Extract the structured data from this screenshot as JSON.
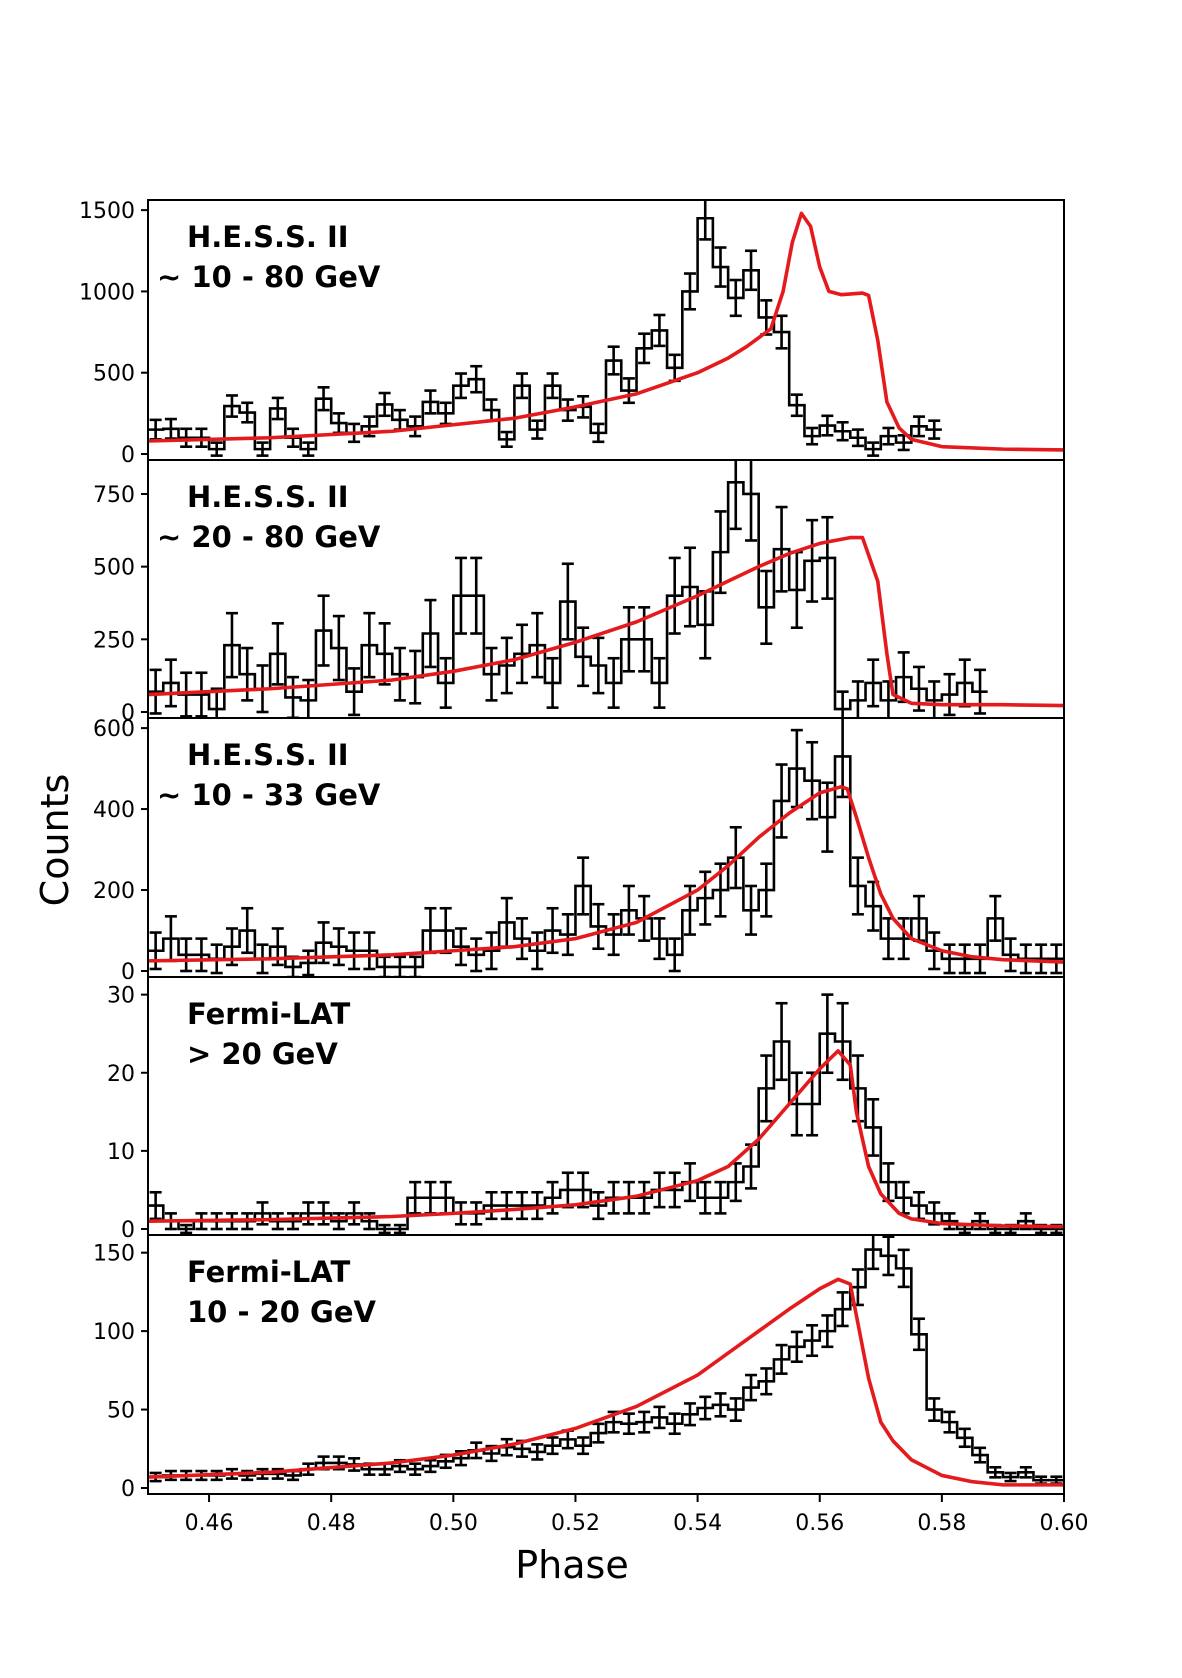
{
  "chart_data": {
    "type": "histogram",
    "xlabel": "Phase",
    "ylabel": "Counts",
    "xlim": [
      0.45,
      0.6
    ],
    "bin_width": 0.0025,
    "x_ticks": [
      "0.46",
      "0.48",
      "0.50",
      "0.52",
      "0.54",
      "0.56",
      "0.58",
      "0.60"
    ],
    "panels": [
      {
        "name": "hess-10-80",
        "annotation": [
          "H.E.S.S. II",
          "∼ 10 - 80 GeV"
        ],
        "ylim": [
          0,
          1550
        ],
        "yticks": [
          0,
          500,
          1000,
          1500
        ],
        "counts": [
          150,
          155,
          100,
          100,
          30,
          295,
          255,
          30,
          280,
          100,
          30,
          340,
          190,
          130,
          170,
          305,
          210,
          170,
          320,
          250,
          420,
          460,
          270,
          90,
          420,
          150,
          420,
          270,
          290,
          130,
          575,
          390,
          650,
          760,
          530,
          1000,
          1450,
          1150,
          960,
          1130,
          840,
          750,
          300,
          110,
          175,
          140,
          100,
          30,
          110,
          70,
          170,
          150
        ],
        "errors": [
          60,
          60,
          55,
          55,
          40,
          65,
          60,
          40,
          65,
          55,
          40,
          70,
          60,
          55,
          60,
          70,
          60,
          60,
          70,
          65,
          75,
          80,
          65,
          45,
          75,
          55,
          75,
          65,
          65,
          55,
          85,
          75,
          90,
          95,
          80,
          110,
          130,
          120,
          110,
          120,
          105,
          100,
          65,
          50,
          60,
          55,
          50,
          40,
          50,
          45,
          60,
          55
        ],
        "model": [
          [
            0.45,
            80
          ],
          [
            0.47,
            100
          ],
          [
            0.49,
            140
          ],
          [
            0.51,
            220
          ],
          [
            0.52,
            290
          ],
          [
            0.53,
            370
          ],
          [
            0.54,
            500
          ],
          [
            0.545,
            590
          ],
          [
            0.548,
            660
          ],
          [
            0.552,
            770
          ],
          [
            0.554,
            1000
          ],
          [
            0.5555,
            1300
          ],
          [
            0.557,
            1480
          ],
          [
            0.5585,
            1400
          ],
          [
            0.56,
            1150
          ],
          [
            0.5615,
            1000
          ],
          [
            0.5635,
            980
          ],
          [
            0.567,
            990
          ],
          [
            0.568,
            975
          ],
          [
            0.5695,
            700
          ],
          [
            0.571,
            320
          ],
          [
            0.573,
            160
          ],
          [
            0.575,
            90
          ],
          [
            0.58,
            45
          ],
          [
            0.59,
            30
          ],
          [
            0.6,
            25
          ]
        ]
      },
      {
        "name": "hess-20-80",
        "annotation": [
          "H.E.S.S. II",
          "∼ 20 - 80 GeV"
        ],
        "ylim": [
          0,
          860
        ],
        "yticks": [
          0,
          250,
          500,
          750
        ],
        "counts": [
          70,
          100,
          60,
          60,
          10,
          230,
          130,
          80,
          200,
          50,
          40,
          280,
          220,
          70,
          230,
          200,
          130,
          120,
          270,
          100,
          400,
          400,
          130,
          160,
          200,
          230,
          100,
          380,
          190,
          160,
          100,
          250,
          250,
          100,
          400,
          430,
          300,
          550,
          790,
          750,
          360,
          560,
          420,
          520,
          530,
          10,
          40,
          100,
          40,
          120,
          80,
          40,
          60,
          100,
          70
        ],
        "errors": [
          75,
          80,
          75,
          75,
          70,
          110,
          90,
          80,
          105,
          70,
          70,
          120,
          110,
          80,
          110,
          105,
          90,
          90,
          115,
          85,
          130,
          130,
          90,
          95,
          100,
          110,
          85,
          130,
          100,
          95,
          85,
          110,
          110,
          85,
          130,
          135,
          115,
          140,
          160,
          160,
          125,
          145,
          130,
          140,
          140,
          60,
          65,
          80,
          65,
          85,
          75,
          65,
          70,
          80,
          75
        ],
        "model": [
          [
            0.45,
            60
          ],
          [
            0.47,
            80
          ],
          [
            0.49,
            110
          ],
          [
            0.5,
            140
          ],
          [
            0.51,
            180
          ],
          [
            0.52,
            240
          ],
          [
            0.53,
            310
          ],
          [
            0.54,
            400
          ],
          [
            0.545,
            450
          ],
          [
            0.55,
            500
          ],
          [
            0.555,
            545
          ],
          [
            0.56,
            580
          ],
          [
            0.565,
            600
          ],
          [
            0.567,
            600
          ],
          [
            0.5695,
            450
          ],
          [
            0.571,
            200
          ],
          [
            0.572,
            60
          ],
          [
            0.575,
            30
          ],
          [
            0.58,
            25
          ],
          [
            0.59,
            25
          ],
          [
            0.6,
            22
          ]
        ]
      },
      {
        "name": "hess-10-33",
        "annotation": [
          "H.E.S.S. II",
          "∼ 10 - 33 GeV"
        ],
        "ylim": [
          0,
          620
        ],
        "yticks": [
          0,
          200,
          400,
          600
        ],
        "counts": [
          50,
          80,
          40,
          40,
          30,
          60,
          100,
          30,
          60,
          10,
          20,
          70,
          60,
          50,
          50,
          10,
          10,
          10,
          100,
          100,
          60,
          40,
          50,
          120,
          80,
          50,
          100,
          90,
          210,
          110,
          90,
          150,
          130,
          80,
          40,
          150,
          180,
          200,
          280,
          150,
          200,
          420,
          500,
          470,
          380,
          530,
          210,
          160,
          80,
          80,
          130,
          50,
          30,
          30,
          30,
          130,
          40,
          30,
          30,
          30
        ],
        "errors": [
          45,
          55,
          40,
          40,
          35,
          45,
          55,
          35,
          45,
          25,
          30,
          50,
          45,
          45,
          45,
          25,
          25,
          25,
          55,
          55,
          45,
          40,
          45,
          60,
          50,
          45,
          55,
          50,
          70,
          55,
          50,
          60,
          55,
          50,
          40,
          60,
          65,
          65,
          75,
          60,
          65,
          90,
          95,
          95,
          85,
          100,
          70,
          60,
          50,
          50,
          55,
          45,
          35,
          35,
          35,
          55,
          40,
          35,
          35,
          35
        ],
        "model": [
          [
            0.45,
            25
          ],
          [
            0.47,
            30
          ],
          [
            0.49,
            40
          ],
          [
            0.5,
            50
          ],
          [
            0.51,
            60
          ],
          [
            0.52,
            80
          ],
          [
            0.53,
            120
          ],
          [
            0.54,
            200
          ],
          [
            0.545,
            260
          ],
          [
            0.55,
            330
          ],
          [
            0.555,
            390
          ],
          [
            0.56,
            440
          ],
          [
            0.5635,
            455
          ],
          [
            0.5645,
            450
          ],
          [
            0.566,
            380
          ],
          [
            0.568,
            280
          ],
          [
            0.57,
            190
          ],
          [
            0.572,
            130
          ],
          [
            0.575,
            80
          ],
          [
            0.58,
            50
          ],
          [
            0.585,
            35
          ],
          [
            0.59,
            28
          ],
          [
            0.6,
            22
          ]
        ]
      },
      {
        "name": "fermi-gt20",
        "annotation": [
          "Fermi-LAT",
          "> 20 GeV"
        ],
        "ylim": [
          0,
          32
        ],
        "yticks": [
          0,
          10,
          20,
          30
        ],
        "counts": [
          3,
          1,
          0,
          1,
          1,
          1,
          1,
          2,
          1,
          1,
          2,
          2,
          1,
          2,
          1,
          0,
          0,
          4,
          4,
          4,
          2,
          2,
          3,
          3,
          3,
          3,
          4,
          5,
          5,
          3,
          4,
          4,
          4,
          5,
          5,
          6,
          4,
          4,
          6,
          8,
          18,
          24,
          16,
          16,
          25,
          24,
          18,
          13,
          6,
          4,
          3,
          2,
          1,
          0,
          1,
          0,
          0,
          1,
          0,
          0
        ],
        "errors": [
          1.7,
          1.0,
          0.5,
          1.0,
          1.0,
          1.0,
          1.0,
          1.4,
          1.0,
          1.0,
          1.4,
          1.4,
          1.0,
          1.4,
          1.0,
          0.5,
          0.5,
          2.0,
          2.0,
          2.0,
          1.4,
          1.4,
          1.7,
          1.7,
          1.7,
          1.7,
          2.0,
          2.2,
          2.2,
          1.7,
          2.0,
          2.0,
          2.0,
          2.2,
          2.2,
          2.4,
          2.0,
          2.0,
          2.4,
          2.8,
          4.2,
          4.9,
          4.0,
          4.0,
          5.0,
          4.9,
          4.2,
          3.6,
          2.4,
          2.0,
          1.7,
          1.4,
          1.0,
          0.5,
          1.0,
          0.5,
          0.5,
          1.0,
          0.5,
          0.5
        ],
        "model": [
          [
            0.45,
            1.0
          ],
          [
            0.47,
            1.2
          ],
          [
            0.49,
            1.6
          ],
          [
            0.5,
            2.0
          ],
          [
            0.51,
            2.5
          ],
          [
            0.52,
            3.1
          ],
          [
            0.53,
            4.2
          ],
          [
            0.54,
            6.2
          ],
          [
            0.545,
            8.0
          ],
          [
            0.55,
            11.5
          ],
          [
            0.555,
            16.0
          ],
          [
            0.56,
            20.5
          ],
          [
            0.563,
            22.8
          ],
          [
            0.565,
            21.0
          ],
          [
            0.566,
            15.0
          ],
          [
            0.568,
            8.0
          ],
          [
            0.57,
            4.5
          ],
          [
            0.573,
            2.0
          ],
          [
            0.575,
            1.3
          ],
          [
            0.58,
            0.7
          ],
          [
            0.59,
            0.4
          ],
          [
            0.6,
            0.3
          ]
        ]
      },
      {
        "name": "fermi-10-20",
        "annotation": [
          "Fermi-LAT",
          "10 - 20 GeV"
        ],
        "ylim": [
          0,
          160
        ],
        "yticks": [
          0,
          50,
          100,
          150
        ],
        "counts": [
          7,
          8,
          8,
          8,
          8,
          9,
          8,
          9,
          9,
          8,
          12,
          16,
          16,
          15,
          12,
          12,
          14,
          12,
          14,
          17,
          19,
          24,
          22,
          26,
          25,
          23,
          27,
          31,
          27,
          35,
          42,
          41,
          42,
          45,
          41,
          47,
          51,
          53,
          50,
          64,
          68,
          82,
          90,
          94,
          100,
          114,
          128,
          152,
          148,
          140,
          98,
          50,
          42,
          32,
          21,
          10,
          7,
          10,
          5,
          5
        ],
        "errors": [
          2.6,
          2.8,
          2.8,
          2.8,
          2.8,
          3.0,
          2.8,
          3.0,
          3.0,
          2.8,
          3.5,
          4.0,
          4.0,
          3.9,
          3.5,
          3.5,
          3.7,
          3.5,
          3.7,
          4.1,
          4.4,
          4.9,
          4.7,
          5.1,
          5.0,
          4.8,
          5.2,
          5.6,
          5.2,
          5.9,
          6.5,
          6.4,
          6.5,
          6.7,
          6.4,
          6.9,
          7.1,
          7.3,
          7.1,
          8.0,
          8.2,
          9.1,
          9.5,
          9.7,
          10.0,
          10.7,
          11.3,
          12.3,
          12.2,
          11.8,
          9.9,
          7.1,
          6.5,
          5.7,
          4.6,
          3.2,
          2.6,
          3.2,
          2.2,
          2.2
        ],
        "model": [
          [
            0.45,
            7
          ],
          [
            0.47,
            10
          ],
          [
            0.48,
            13
          ],
          [
            0.49,
            16
          ],
          [
            0.5,
            21
          ],
          [
            0.51,
            28
          ],
          [
            0.52,
            38
          ],
          [
            0.53,
            52
          ],
          [
            0.54,
            72
          ],
          [
            0.545,
            86
          ],
          [
            0.55,
            100
          ],
          [
            0.555,
            114
          ],
          [
            0.56,
            127
          ],
          [
            0.563,
            133
          ],
          [
            0.565,
            130
          ],
          [
            0.566,
            110
          ],
          [
            0.568,
            70
          ],
          [
            0.57,
            42
          ],
          [
            0.572,
            30
          ],
          [
            0.575,
            18
          ],
          [
            0.58,
            8
          ],
          [
            0.585,
            4
          ],
          [
            0.59,
            2
          ],
          [
            0.6,
            2
          ]
        ]
      }
    ]
  }
}
